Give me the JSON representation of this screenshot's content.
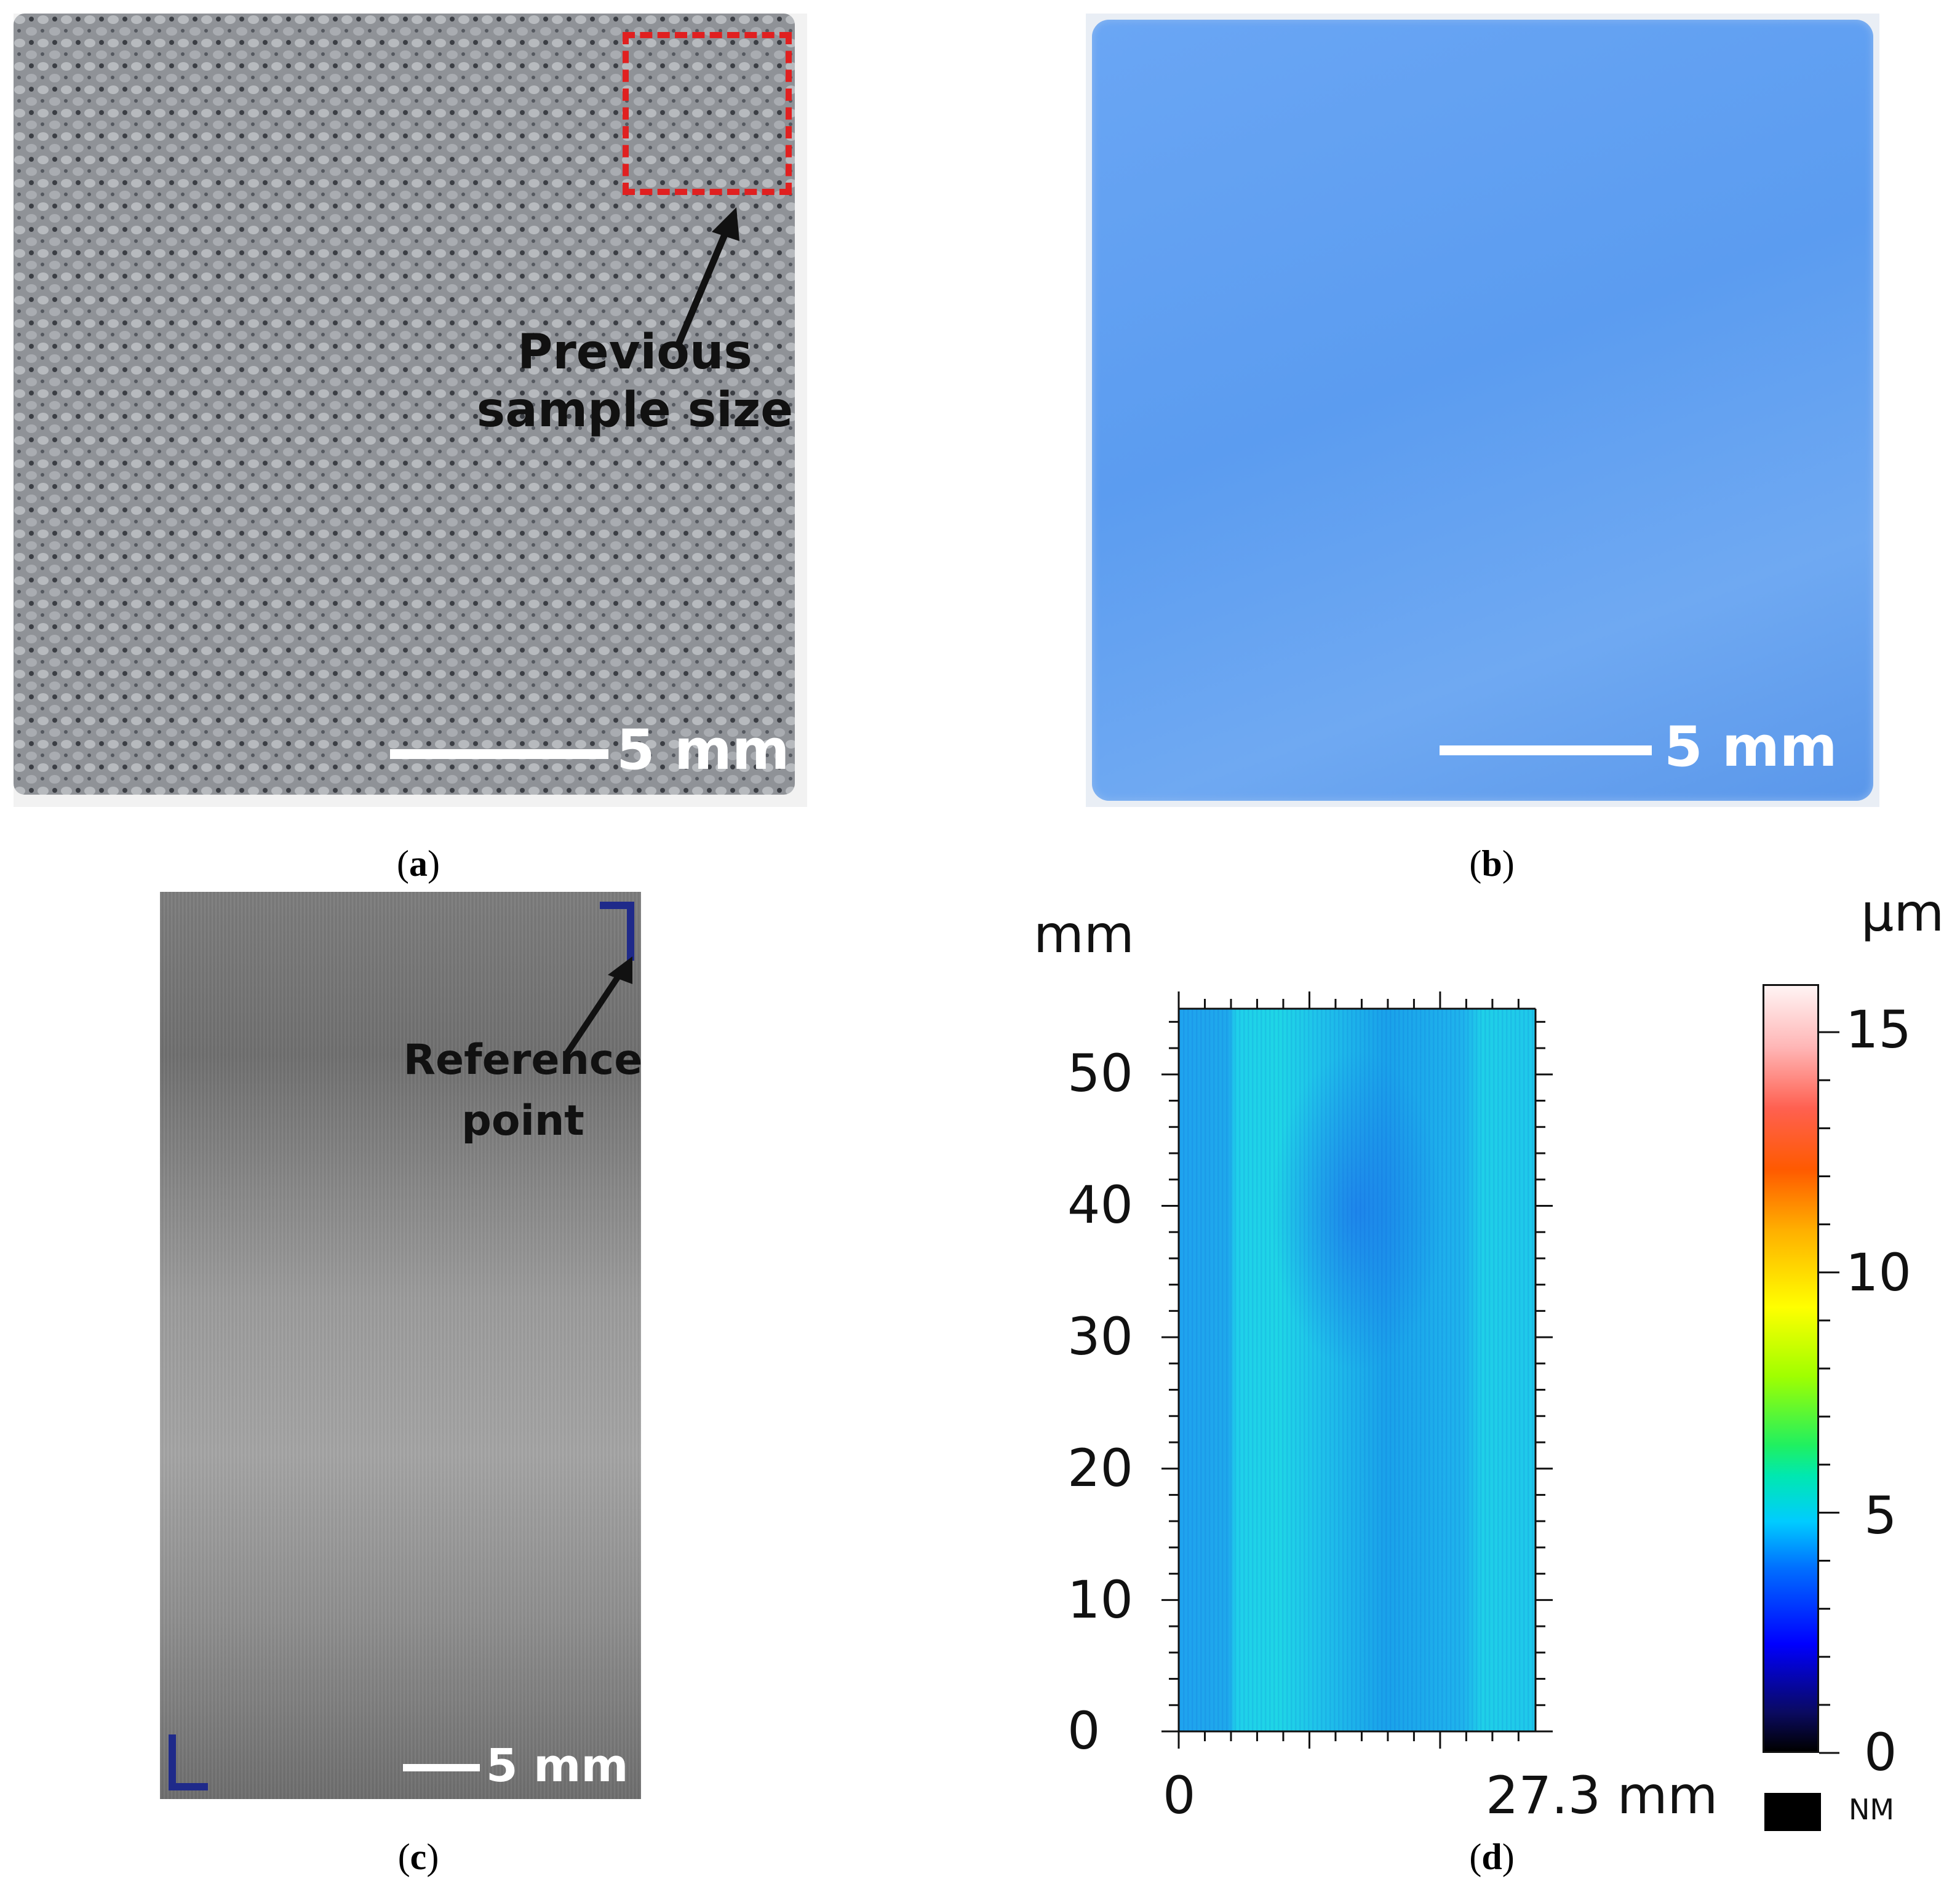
{
  "panels": {
    "a": {
      "caption": "a",
      "annotation": [
        "Previous",
        "sample size"
      ],
      "scale_label": "5 mm",
      "colors": {
        "fabric": "#8c8f94",
        "box": "#e02020"
      }
    },
    "b": {
      "caption": "b",
      "scale_label": "5 mm",
      "colors": {
        "pad": "#5b9cf0"
      }
    },
    "c": {
      "caption": "c",
      "annotation": [
        "Reference",
        "point"
      ],
      "scale_label": "5 mm",
      "colors": {
        "metal": "#8a8a8a",
        "marker": "#1f2a8a"
      }
    },
    "d": {
      "caption": "d",
      "y_unit": "mm",
      "x_label_end": "27.3 mm",
      "colorbar_unit": "µm",
      "nm_label": "NM",
      "chart_data": {
        "type": "heatmap",
        "x_ticks": [
          "0",
          "27.3 mm"
        ],
        "y_ticks": [
          "0",
          "10",
          "20",
          "30",
          "40",
          "50"
        ],
        "xlim": [
          0,
          27.3
        ],
        "ylim": [
          0,
          55
        ],
        "colorbar": {
          "ticks": [
            "0",
            "5",
            "10",
            "15"
          ],
          "range": [
            0,
            16
          ]
        }
      }
    }
  }
}
